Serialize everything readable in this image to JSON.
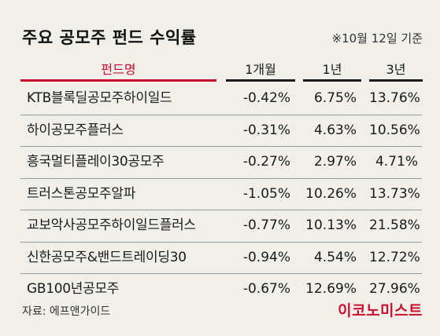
{
  "title": "주요 공모주 펀드 수익률",
  "date_note": "※10월 12일 기준",
  "columns": {
    "name": "펀드명",
    "m1": "1개월",
    "y1": "1년",
    "y3": "3년"
  },
  "rows": [
    {
      "name": "KTB블록딜공모주하이일드",
      "m1": "-0.42%",
      "y1": "6.75%",
      "y3": "13.76%"
    },
    {
      "name": "하이공모주플러스",
      "m1": "-0.31%",
      "y1": "4.63%",
      "y3": "10.56%"
    },
    {
      "name": "흥국멀티플레이30공모주",
      "m1": "-0.27%",
      "y1": "2.97%",
      "y3": "4.71%"
    },
    {
      "name": "트러스톤공모주알파",
      "m1": "-1.05%",
      "y1": "10.26%",
      "y3": "13.73%"
    },
    {
      "name": "교보악사공모주하이일드플러스",
      "m1": "-0.77%",
      "y1": "10.13%",
      "y3": "21.58%"
    },
    {
      "name": "신한공모주&밴드트레이딩30",
      "m1": "-0.94%",
      "y1": "4.54%",
      "y3": "12.72%"
    },
    {
      "name": "GB100년공모주",
      "m1": "-0.67%",
      "y1": "12.69%",
      "y3": "27.96%"
    }
  ],
  "source": "자료: 에프앤가이드",
  "brand": "이코노미스트",
  "colors": {
    "accent": "#c8102e",
    "background": "#f1efe9"
  }
}
